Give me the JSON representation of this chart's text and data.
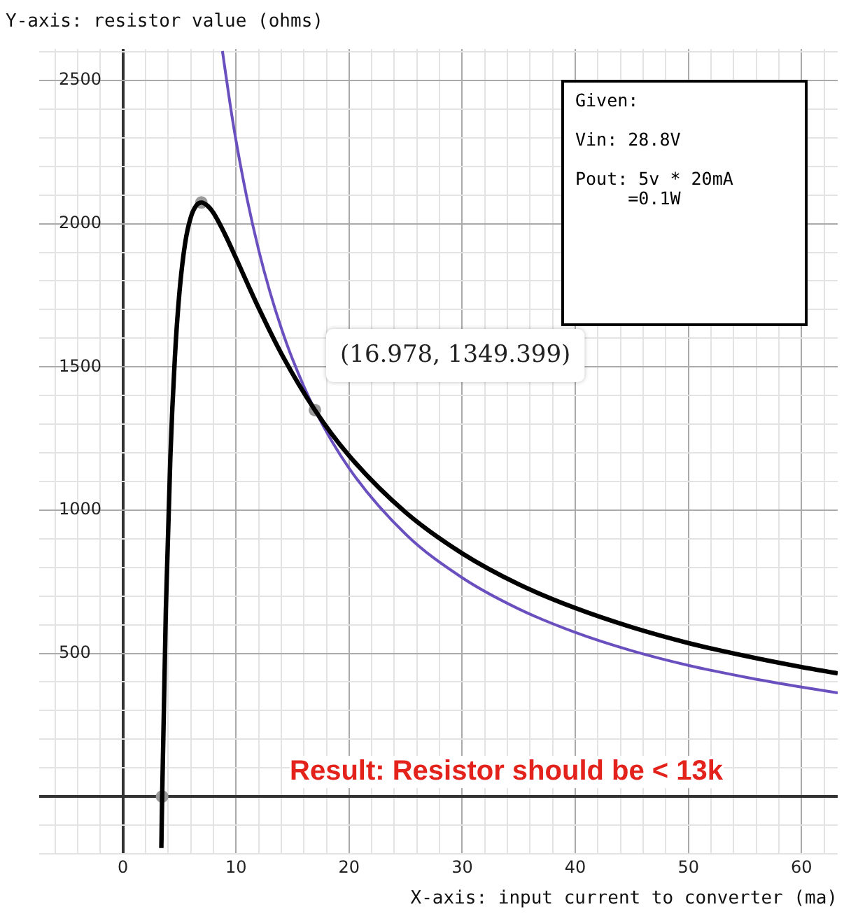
{
  "chart_data": {
    "type": "line",
    "xlabel": "X-axis: input current to converter (ma)",
    "ylabel": "Y-axis: resistor value (ohms)",
    "xlim": [
      -7.4,
      63.2
    ],
    "ylim": [
      -200,
      2610
    ],
    "xticks": [
      {
        "value": -6,
        "label": null
      },
      {
        "value": -4,
        "label": null
      },
      {
        "value": -2,
        "label": null
      },
      0,
      {
        "value": 2,
        "label": null
      },
      {
        "value": 4,
        "label": null
      },
      {
        "value": 6,
        "label": null
      },
      {
        "value": 8,
        "label": null
      },
      10,
      {
        "value": 12,
        "label": null
      },
      {
        "value": 14,
        "label": null
      },
      {
        "value": 16,
        "label": null
      },
      {
        "value": 18,
        "label": null
      },
      20,
      {
        "value": 22,
        "label": null
      },
      {
        "value": 24,
        "label": null
      },
      {
        "value": 26,
        "label": null
      },
      {
        "value": 28,
        "label": null
      },
      30,
      {
        "value": 32,
        "label": null
      },
      {
        "value": 34,
        "label": null
      },
      {
        "value": 36,
        "label": null
      },
      {
        "value": 38,
        "label": null
      },
      40,
      {
        "value": 42,
        "label": null
      },
      {
        "value": 44,
        "label": null
      },
      {
        "value": 46,
        "label": null
      },
      {
        "value": 48,
        "label": null
      },
      50,
      {
        "value": 52,
        "label": null
      },
      {
        "value": 54,
        "label": null
      },
      {
        "value": 56,
        "label": null
      },
      {
        "value": 58,
        "label": null
      },
      60,
      {
        "value": 62,
        "label": null
      }
    ],
    "yticks": [
      {
        "value": -200,
        "label": null
      },
      {
        "value": -100,
        "label": null
      },
      {
        "value": 0,
        "label": null
      },
      {
        "value": 100,
        "label": null
      },
      {
        "value": 200,
        "label": null
      },
      {
        "value": 300,
        "label": null
      },
      {
        "value": 400,
        "label": null
      },
      500,
      {
        "value": 600,
        "label": null
      },
      {
        "value": 700,
        "label": null
      },
      {
        "value": 800,
        "label": null
      },
      {
        "value": 900,
        "label": null
      },
      1000,
      {
        "value": 1100,
        "label": null
      },
      {
        "value": 1200,
        "label": null
      },
      {
        "value": 1300,
        "label": null
      },
      {
        "value": 1400,
        "label": null
      },
      1500,
      {
        "value": 1600,
        "label": null
      },
      {
        "value": 1700,
        "label": null
      },
      {
        "value": 1800,
        "label": null
      },
      {
        "value": 1900,
        "label": null
      },
      2000,
      {
        "value": 2100,
        "label": null
      },
      {
        "value": 2200,
        "label": null
      },
      {
        "value": 2300,
        "label": null
      },
      {
        "value": 2400,
        "label": null
      },
      2500,
      {
        "value": 2600,
        "label": null
      }
    ],
    "grid": true,
    "legend": false,
    "series": [
      {
        "color": "#000000",
        "marker": "none",
        "x": [
          3.4,
          3.47,
          3.8,
          4.2,
          4.6,
          5,
          5.5,
          6,
          6.5,
          6.94,
          7.5,
          8,
          9,
          10,
          11,
          12,
          14,
          16.978,
          20,
          25,
          30,
          35,
          40,
          45,
          50,
          55,
          60,
          63.2
        ],
        "values": [
          -180,
          -5,
          654,
          1188,
          1535,
          1760,
          1931,
          2022,
          2064,
          2074,
          2062,
          2038,
          1965,
          1880,
          1792,
          1706,
          1547,
          1349.4,
          1190,
          992,
          849,
          741,
          658,
          591,
          536,
          491,
          452,
          430
        ]
      },
      {
        "color": "#6a4fbf",
        "marker": "none",
        "x": [
          8.8,
          9.5,
          10,
          11,
          12,
          13,
          14,
          15,
          16.978,
          20,
          25,
          30,
          35,
          40,
          45,
          50,
          55,
          60,
          63.2
        ],
        "values": [
          2603,
          2412,
          2291,
          2083,
          1909,
          1762,
          1636,
          1527,
          1349.4,
          1146,
          916,
          764,
          655,
          573,
          509,
          458,
          417,
          382,
          362
        ]
      },
      {
        "type": "scatter",
        "color": "#999999",
        "marker": "circle",
        "x": [
          3.47,
          6.94,
          16.978
        ],
        "values": [
          0,
          2074,
          1349.399
        ]
      }
    ],
    "annotations": [
      "Given:\n\nVin: 28.8V\n\nPout: 5v * 20mA\n     =0.1W",
      "Result: Resistor should be < 13k",
      {
        "text": "(16.978, 1349.399)",
        "x": 16.978,
        "y": 1349.399
      }
    ]
  }
}
